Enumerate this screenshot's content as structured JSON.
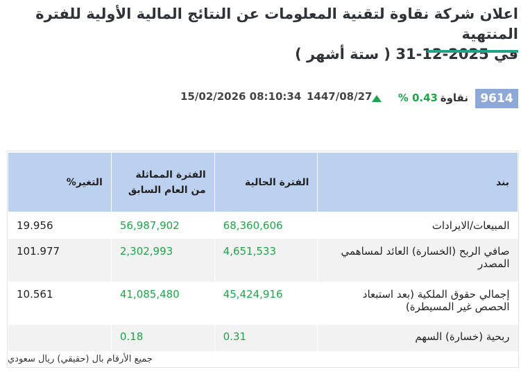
{
  "announcement": {
    "title_line1": "اعلان شركة نقاوة لتقنية المعلومات عن النتائج المالية الأولية للفترة المنتهية",
    "title_line2": "في 2025-12-31 ( ستة أشهر )"
  },
  "ticker": {
    "symbol": "9614",
    "company": "نقاوة",
    "change": "% 0.43",
    "change_direction_icon": "up-triangle-icon",
    "hijri_date": "1447/08/27",
    "gregorian_datetime": "15/02/2026 08:10:34"
  },
  "colors": {
    "accent": "#20a386",
    "positive": "#1fa34a",
    "header_bg": "#bcd1ef",
    "symbol_bg": "#8da9d8"
  },
  "table": {
    "headers": [
      "بند",
      "الفترة الحالية",
      "الفترة المماثلة من العام السابق",
      "التغير%"
    ],
    "rows": [
      {
        "item": "المبيعات/الايرادات",
        "current": "68,360,606",
        "previous": "56,987,902",
        "change": "19.956"
      },
      {
        "item": "صافي الربح (الخسارة) العائد لمساهمي المصدر",
        "current": "4,651,533",
        "previous": "2,302,993",
        "change": "101.977"
      },
      {
        "item": "إجمالي حقوق الملكية (بعد استبعاد الحصص غير المسيطرة)",
        "current": "45,424,916",
        "previous": "41,085,480",
        "change": "10.561"
      },
      {
        "item": "ربحية (خسارة) السهم",
        "current": "0.31",
        "previous": "0.18",
        "change": ""
      }
    ]
  },
  "footnote": "جميع الأرقام بال (حقيقي) ريال سعودي"
}
